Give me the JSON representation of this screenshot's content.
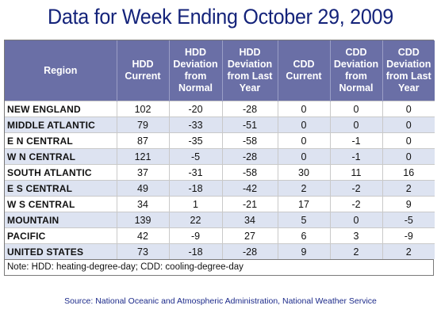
{
  "title": "Data for Week Ending October 29, 2009",
  "note": "Note: HDD: heating-degree-day; CDD: cooling-degree-day",
  "source": "Source:  National Oceanic and Atmospheric Administration, National Weather Service",
  "colors": {
    "title": "#14237a",
    "header_bg": "#6a6fa6",
    "stripe": "#dde3f1",
    "source": "#1c2a8a"
  },
  "chart_data": {
    "type": "table",
    "title": "Data for Week Ending October 29, 2009",
    "columns": [
      "Region",
      "HDD Current",
      "HDD Deviation from Normal",
      "HDD Deviation from Last Year",
      "CDD Current",
      "CDD Deviation from Normal",
      "CDD Deviation from Last Year"
    ],
    "rows": [
      [
        "NEW ENGLAND",
        "102",
        "-20",
        "-28",
        "0",
        "0",
        "0"
      ],
      [
        "MIDDLE ATLANTIC",
        "79",
        "-33",
        "-51",
        "0",
        "0",
        "0"
      ],
      [
        "E N CENTRAL",
        "87",
        "-35",
        "-58",
        "0",
        "-1",
        "0"
      ],
      [
        "W N CENTRAL",
        "121",
        "-5",
        "-28",
        "0",
        "-1",
        "0"
      ],
      [
        "SOUTH ATLANTIC",
        "37",
        "-31",
        "-58",
        "30",
        "11",
        "16"
      ],
      [
        "E S CENTRAL",
        "49",
        "-18",
        "-42",
        "2",
        "-2",
        "2"
      ],
      [
        "W S CENTRAL",
        "34",
        "1",
        "-21",
        "17",
        "-2",
        "9"
      ],
      [
        "MOUNTAIN",
        "139",
        "22",
        "34",
        "5",
        "0",
        "-5"
      ],
      [
        "PACIFIC",
        "42",
        "-9",
        "27",
        "6",
        "3",
        "-9"
      ],
      [
        "UNITED STATES",
        "73",
        "-18",
        "-28",
        "9",
        "2",
        "2"
      ]
    ]
  }
}
